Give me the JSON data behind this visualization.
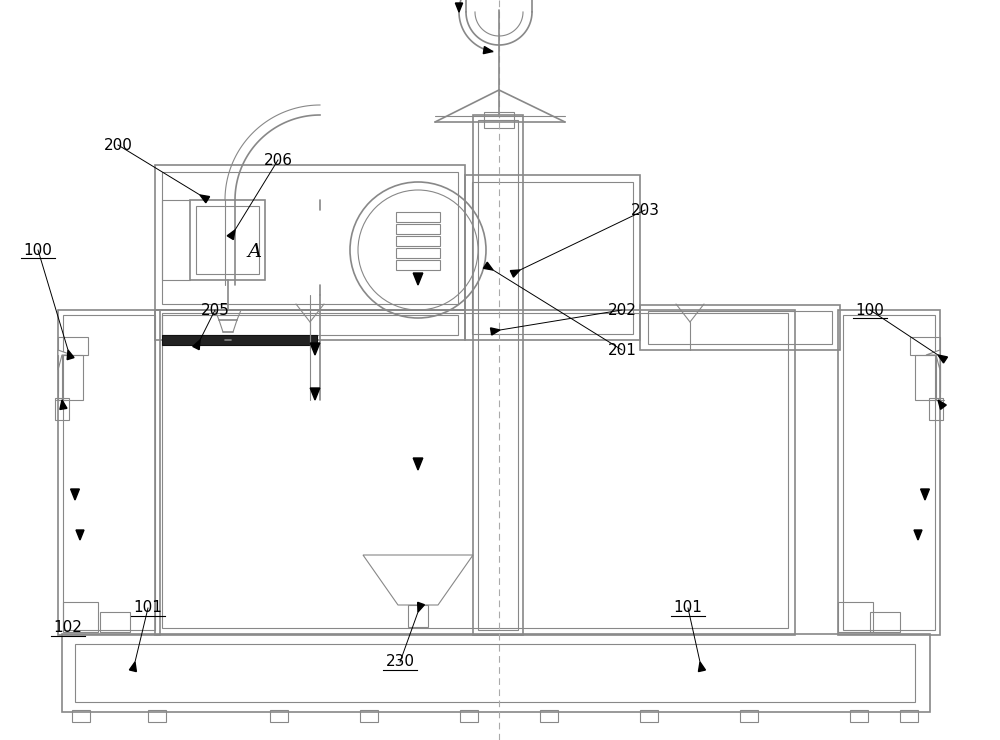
{
  "bg_color": "#ffffff",
  "line_color": "#888888",
  "black": "#000000",
  "figsize": [
    10.0,
    7.4
  ],
  "dpi": 100
}
